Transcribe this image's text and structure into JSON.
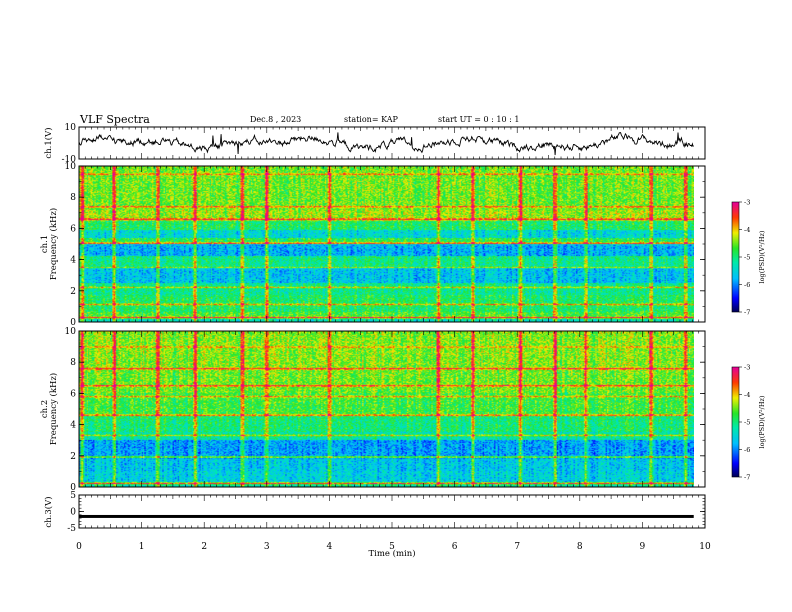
{
  "header": {
    "title": "VLF Spectra",
    "date": "Dec.8 , 2023",
    "station": "station= KAP",
    "start": "start  UT =   0 : 10 : 1"
  },
  "chart_data": [
    {
      "type": "line",
      "name": "ch1-waveform",
      "ylabel": "ch.1(V)",
      "ylim": [
        -10,
        10
      ],
      "yticks": [
        "10",
        "-10"
      ],
      "xlim": [
        0,
        10
      ],
      "x_end": 9.82,
      "trace_color": "#000000",
      "note_values": "waveform trace fluctuates roughly between -5 and 5 V"
    },
    {
      "type": "heatmap",
      "name": "ch1-spectrogram",
      "ylabel": "ch.1\nFrequency (kHz)",
      "ylim": [
        0,
        10
      ],
      "yticks": [
        "0",
        "2",
        "4",
        "6",
        "8",
        "10"
      ],
      "xlim": [
        0,
        10
      ],
      "x_end": 9.82,
      "colorbar": {
        "label": "log(PSD)(V²/Hz)",
        "range": [
          -7,
          -3
        ],
        "ticks": [
          "-3",
          "-4",
          "-5",
          "-6",
          "-7"
        ]
      },
      "bands": [
        {
          "f0": 0.0,
          "f1": 0.3,
          "level": 0.42
        },
        {
          "f0": 0.3,
          "f1": 0.6,
          "level": 0.58
        },
        {
          "f0": 0.6,
          "f1": 1.7,
          "level": 0.52
        },
        {
          "f0": 1.7,
          "f1": 2.5,
          "level": 0.47
        },
        {
          "f0": 2.5,
          "f1": 3.6,
          "level": 0.33
        },
        {
          "f0": 3.6,
          "f1": 4.2,
          "level": 0.48
        },
        {
          "f0": 4.2,
          "f1": 5.0,
          "level": 0.3
        },
        {
          "f0": 5.0,
          "f1": 5.4,
          "level": 0.55
        },
        {
          "f0": 5.4,
          "f1": 5.9,
          "level": 0.38
        },
        {
          "f0": 5.9,
          "f1": 6.5,
          "level": 0.52
        },
        {
          "f0": 6.5,
          "f1": 7.2,
          "level": 0.66
        },
        {
          "f0": 7.2,
          "f1": 10.0,
          "level": 0.62
        }
      ],
      "lines": [
        {
          "f": 0.25,
          "level": 0.96
        },
        {
          "f": 1.1,
          "level": 0.8
        },
        {
          "f": 2.2,
          "level": 0.74
        },
        {
          "f": 3.5,
          "level": 0.72
        },
        {
          "f": 5.05,
          "level": 0.92
        },
        {
          "f": 6.6,
          "level": 0.95
        },
        {
          "f": 7.4,
          "level": 0.88
        },
        {
          "f": 9.5,
          "level": 0.85
        }
      ],
      "bursts_min": [
        0.05,
        0.55,
        1.25,
        1.85,
        2.6,
        3.0,
        4.0,
        5.75,
        6.3,
        7.05,
        7.6,
        8.1,
        9.15,
        9.7
      ]
    },
    {
      "type": "heatmap",
      "name": "ch2-spectrogram",
      "ylabel": "ch.2\nFrequency (kHz)",
      "ylim": [
        0,
        10
      ],
      "yticks": [
        "0",
        "2",
        "4",
        "6",
        "8",
        "10"
      ],
      "xlim": [
        0,
        10
      ],
      "x_end": 9.82,
      "colorbar": {
        "label": "log(PSD)(V²/Hz)",
        "range": [
          -7,
          -3
        ],
        "ticks": [
          "-3",
          "-4",
          "-5",
          "-6",
          "-7"
        ]
      },
      "bands": [
        {
          "f0": 0.0,
          "f1": 0.3,
          "level": 0.45
        },
        {
          "f0": 0.3,
          "f1": 1.0,
          "level": 0.36
        },
        {
          "f0": 1.0,
          "f1": 1.8,
          "level": 0.34
        },
        {
          "f0": 1.8,
          "f1": 3.0,
          "level": 0.28
        },
        {
          "f0": 3.0,
          "f1": 3.5,
          "level": 0.44
        },
        {
          "f0": 3.5,
          "f1": 4.6,
          "level": 0.5
        },
        {
          "f0": 4.6,
          "f1": 6.0,
          "level": 0.57
        },
        {
          "f0": 6.0,
          "f1": 7.5,
          "level": 0.62
        },
        {
          "f0": 7.5,
          "f1": 10.0,
          "level": 0.64
        }
      ],
      "lines": [
        {
          "f": 0.2,
          "level": 0.9
        },
        {
          "f": 1.9,
          "level": 0.74
        },
        {
          "f": 3.3,
          "level": 0.72
        },
        {
          "f": 4.6,
          "level": 0.9
        },
        {
          "f": 5.8,
          "level": 0.8
        },
        {
          "f": 6.5,
          "level": 0.92
        },
        {
          "f": 7.6,
          "level": 0.94
        },
        {
          "f": 9.0,
          "level": 0.82
        }
      ],
      "bursts_min": [
        0.05,
        0.55,
        1.25,
        1.85,
        2.6,
        3.0,
        4.0,
        5.75,
        6.3,
        7.05,
        7.6,
        8.1,
        9.15,
        9.7
      ]
    },
    {
      "type": "line",
      "name": "ch3-waveform",
      "ylabel": "ch.3(V)",
      "ylim": [
        -5,
        5
      ],
      "yticks": [
        "5",
        "0",
        "-5"
      ],
      "xlim": [
        0,
        10
      ],
      "x_end": 9.82,
      "band_center": -1.5,
      "band_halfwidth": 0.45,
      "trace_color": "#000000"
    }
  ],
  "xaxis": {
    "label": "Time  (min)",
    "ticks": [
      "0",
      "1",
      "2",
      "3",
      "4",
      "5",
      "6",
      "7",
      "8",
      "9",
      "10"
    ]
  }
}
